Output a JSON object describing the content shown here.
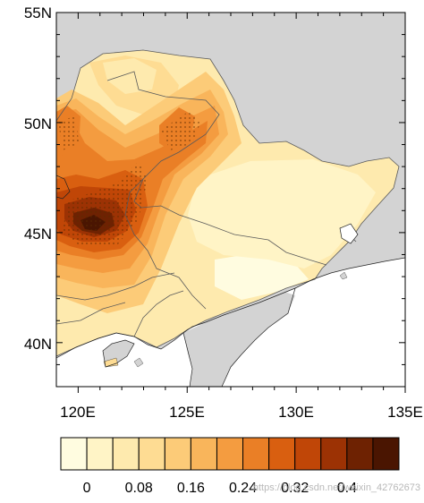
{
  "map": {
    "lat_labels": [
      "55N",
      "50N",
      "45N",
      "40N"
    ],
    "lon_labels": [
      "120E",
      "125E",
      "130E",
      "135E"
    ],
    "lat_range": [
      38,
      55
    ],
    "lon_range": [
      119,
      135
    ],
    "ocean_color": "#ffffff",
    "land_color": "#d3d3d3"
  },
  "colorbar": {
    "labels": [
      "0",
      "0.08",
      "0.16",
      "0.24",
      "0.32",
      "0.4"
    ],
    "colors": [
      "#fffce0",
      "#fff4c6",
      "#feeaae",
      "#fedc93",
      "#fccb78",
      "#f9b55b",
      "#f49c40",
      "#ea7f26",
      "#d95f10",
      "#c04607",
      "#9c3204",
      "#6e2202",
      "#4a1501"
    ]
  },
  "watermark": "https://blog.csdn.net/weixin_42762673"
}
